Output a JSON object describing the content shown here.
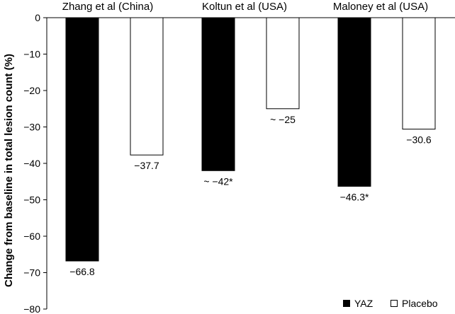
{
  "chart_data": {
    "type": "bar",
    "ylabel": "Change from baseline in total lesion count (%)",
    "ylim": [
      -80,
      0
    ],
    "yticks": [
      0,
      -10,
      -20,
      -30,
      -40,
      -50,
      -60,
      -70,
      -80
    ],
    "ytick_labels": [
      "0",
      "−10",
      "−20",
      "−30",
      "−40",
      "−50",
      "−60",
      "−70",
      "−80"
    ],
    "categories": [
      "Zhang et al (China)",
      "Koltun et al (USA)",
      "Maloney et al (USA)"
    ],
    "series": [
      {
        "name": "YAZ",
        "color": "#000000",
        "values": [
          -66.8,
          -42,
          -46.3
        ],
        "labels": [
          "−66.8",
          "~ −42*",
          "−46.3*"
        ]
      },
      {
        "name": "Placebo",
        "color": "#ffffff",
        "values": [
          -37.7,
          -25,
          -30.6
        ],
        "labels": [
          "−37.7",
          "~ −25",
          "−30.6"
        ]
      }
    ],
    "grid": false,
    "legend_position": "bottom-right"
  }
}
